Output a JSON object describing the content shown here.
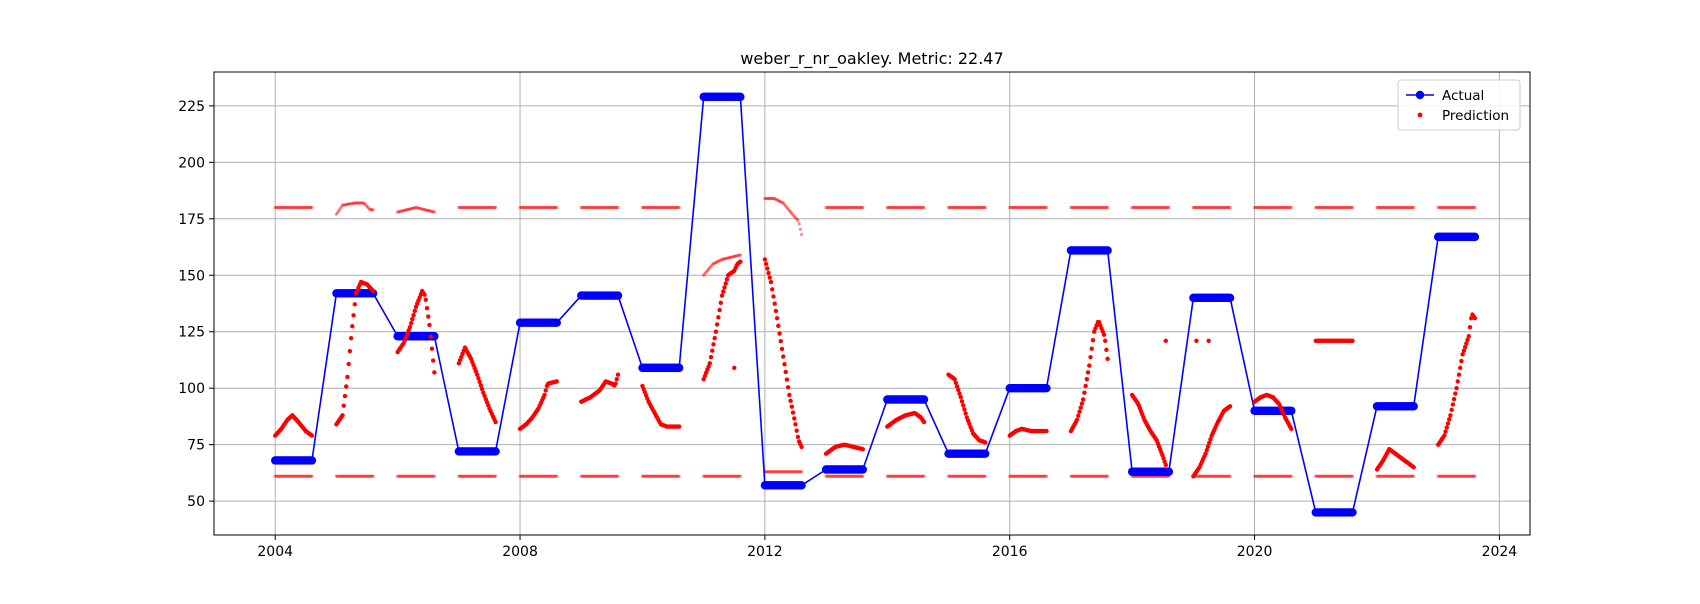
{
  "chart_data": {
    "type": "line",
    "title": "weber_r_nr_oakley. Metric: 22.47",
    "xlabel": "",
    "ylabel": "",
    "xlim": [
      2003.0,
      2024.5
    ],
    "ylim": [
      35,
      240
    ],
    "x_ticks": [
      2004,
      2008,
      2012,
      2016,
      2020,
      2024
    ],
    "y_ticks": [
      50,
      75,
      100,
      125,
      150,
      175,
      200,
      225
    ],
    "grid": true,
    "legend_position": "upper right",
    "legend": [
      "Actual",
      "Prediction"
    ],
    "colors": {
      "actual": "#0000ff",
      "prediction": "#ff0000"
    },
    "actual_segments": [
      {
        "x0": 2004.0,
        "x1": 2004.6,
        "y": 68
      },
      {
        "x0": 2005.0,
        "x1": 2005.6,
        "y": 142
      },
      {
        "x0": 2006.0,
        "x1": 2006.6,
        "y": 123
      },
      {
        "x0": 2007.0,
        "x1": 2007.6,
        "y": 72
      },
      {
        "x0": 2008.0,
        "x1": 2008.6,
        "y": 129
      },
      {
        "x0": 2009.0,
        "x1": 2009.6,
        "y": 141
      },
      {
        "x0": 2010.0,
        "x1": 2010.6,
        "y": 109
      },
      {
        "x0": 2011.0,
        "x1": 2011.6,
        "y": 229
      },
      {
        "x0": 2012.0,
        "x1": 2012.6,
        "y": 57
      },
      {
        "x0": 2013.0,
        "x1": 2013.6,
        "y": 64
      },
      {
        "x0": 2014.0,
        "x1": 2014.6,
        "y": 95
      },
      {
        "x0": 2015.0,
        "x1": 2015.6,
        "y": 71
      },
      {
        "x0": 2016.0,
        "x1": 2016.6,
        "y": 100
      },
      {
        "x0": 2017.0,
        "x1": 2017.6,
        "y": 161
      },
      {
        "x0": 2018.0,
        "x1": 2018.6,
        "y": 63
      },
      {
        "x0": 2019.0,
        "x1": 2019.6,
        "y": 140
      },
      {
        "x0": 2020.0,
        "x1": 2020.6,
        "y": 90
      },
      {
        "x0": 2021.0,
        "x1": 2021.6,
        "y": 45
      },
      {
        "x0": 2022.0,
        "x1": 2022.6,
        "y": 92
      },
      {
        "x0": 2023.0,
        "x1": 2023.6,
        "y": 167
      }
    ],
    "prediction_curves": [
      {
        "points": [
          [
            2004.0,
            79
          ],
          [
            2004.1,
            82
          ],
          [
            2004.2,
            86
          ],
          [
            2004.28,
            88
          ],
          [
            2004.38,
            85
          ],
          [
            2004.5,
            81
          ],
          [
            2004.6,
            79
          ]
        ]
      },
      {
        "points": [
          [
            2005.0,
            84
          ],
          [
            2005.1,
            88
          ],
          [
            2005.18,
            105
          ],
          [
            2005.25,
            125
          ],
          [
            2005.32,
            142
          ],
          [
            2005.4,
            147
          ],
          [
            2005.5,
            146
          ],
          [
            2005.6,
            143
          ]
        ]
      },
      {
        "points": [
          [
            2006.0,
            116
          ],
          [
            2006.1,
            120
          ],
          [
            2006.2,
            127
          ],
          [
            2006.3,
            136
          ],
          [
            2006.4,
            143
          ],
          [
            2006.45,
            141
          ],
          [
            2006.52,
            128
          ],
          [
            2006.6,
            107
          ]
        ]
      },
      {
        "points": [
          [
            2007.0,
            111
          ],
          [
            2007.1,
            118
          ],
          [
            2007.2,
            113
          ],
          [
            2007.3,
            106
          ],
          [
            2007.4,
            98
          ],
          [
            2007.5,
            91
          ],
          [
            2007.6,
            85
          ]
        ]
      },
      {
        "points": [
          [
            2008.0,
            82
          ],
          [
            2008.1,
            84
          ],
          [
            2008.2,
            87
          ],
          [
            2008.3,
            91
          ],
          [
            2008.4,
            97
          ],
          [
            2008.45,
            102
          ],
          [
            2008.6,
            103
          ]
        ]
      },
      {
        "points": [
          [
            2009.0,
            94
          ],
          [
            2009.15,
            96
          ],
          [
            2009.3,
            99
          ],
          [
            2009.4,
            103
          ],
          [
            2009.5,
            102
          ],
          [
            2009.55,
            101
          ],
          [
            2009.6,
            106
          ]
        ]
      },
      {
        "points": [
          [
            2010.0,
            101
          ],
          [
            2010.1,
            94
          ],
          [
            2010.2,
            89
          ],
          [
            2010.3,
            84
          ],
          [
            2010.4,
            83
          ],
          [
            2010.5,
            83
          ],
          [
            2010.6,
            83
          ]
        ]
      },
      {
        "points": [
          [
            2011.0,
            104
          ],
          [
            2011.1,
            111
          ],
          [
            2011.2,
            125
          ],
          [
            2011.3,
            141
          ],
          [
            2011.4,
            150
          ],
          [
            2011.5,
            152
          ],
          [
            2011.55,
            155
          ],
          [
            2011.6,
            156
          ]
        ]
      },
      {
        "points": [
          [
            2012.0,
            157
          ],
          [
            2012.1,
            147
          ],
          [
            2012.2,
            131
          ],
          [
            2012.3,
            114
          ],
          [
            2012.4,
            97
          ],
          [
            2012.5,
            84
          ],
          [
            2012.55,
            77
          ],
          [
            2012.6,
            74
          ]
        ]
      },
      {
        "points": [
          [
            2013.0,
            71
          ],
          [
            2013.15,
            74
          ],
          [
            2013.3,
            75
          ],
          [
            2013.45,
            74
          ],
          [
            2013.6,
            73
          ]
        ]
      },
      {
        "points": [
          [
            2014.0,
            83
          ],
          [
            2014.15,
            86
          ],
          [
            2014.3,
            88
          ],
          [
            2014.45,
            89
          ],
          [
            2014.55,
            87
          ],
          [
            2014.6,
            85
          ]
        ]
      },
      {
        "points": [
          [
            2015.0,
            106
          ],
          [
            2015.1,
            104
          ],
          [
            2015.2,
            96
          ],
          [
            2015.3,
            87
          ],
          [
            2015.4,
            80
          ],
          [
            2015.5,
            77
          ],
          [
            2015.6,
            76
          ]
        ]
      },
      {
        "points": [
          [
            2016.0,
            79
          ],
          [
            2016.1,
            81
          ],
          [
            2016.2,
            82
          ],
          [
            2016.35,
            81
          ],
          [
            2016.5,
            81
          ],
          [
            2016.6,
            81
          ]
        ]
      },
      {
        "points": [
          [
            2017.0,
            81
          ],
          [
            2017.1,
            86
          ],
          [
            2017.2,
            95
          ],
          [
            2017.3,
            110
          ],
          [
            2017.38,
            125
          ],
          [
            2017.45,
            130
          ],
          [
            2017.55,
            123
          ],
          [
            2017.6,
            113
          ]
        ]
      },
      {
        "points": [
          [
            2018.0,
            97
          ],
          [
            2018.1,
            93
          ],
          [
            2018.2,
            86
          ],
          [
            2018.3,
            81
          ],
          [
            2018.4,
            77
          ],
          [
            2018.5,
            70
          ],
          [
            2018.55,
            66
          ]
        ]
      },
      {
        "points": [
          [
            2019.0,
            61
          ],
          [
            2019.1,
            65
          ],
          [
            2019.2,
            71
          ],
          [
            2019.3,
            79
          ],
          [
            2019.4,
            85
          ],
          [
            2019.5,
            90
          ],
          [
            2019.6,
            92
          ]
        ]
      },
      {
        "points": [
          [
            2020.0,
            94
          ],
          [
            2020.1,
            96
          ],
          [
            2020.2,
            97
          ],
          [
            2020.3,
            96
          ],
          [
            2020.4,
            93
          ],
          [
            2020.5,
            87
          ],
          [
            2020.6,
            82
          ]
        ]
      },
      {
        "points": [
          [
            2021.0,
            121
          ],
          [
            2021.15,
            121
          ],
          [
            2021.3,
            121
          ],
          [
            2021.45,
            121
          ],
          [
            2021.6,
            121
          ]
        ]
      },
      {
        "points": [
          [
            2022.0,
            64
          ],
          [
            2022.1,
            68
          ],
          [
            2022.2,
            73
          ],
          [
            2022.3,
            71
          ],
          [
            2022.4,
            69
          ],
          [
            2022.5,
            67
          ],
          [
            2022.6,
            65
          ]
        ]
      },
      {
        "points": [
          [
            2023.0,
            75
          ],
          [
            2023.1,
            79
          ],
          [
            2023.2,
            88
          ],
          [
            2023.3,
            100
          ],
          [
            2023.4,
            115
          ],
          [
            2023.5,
            123
          ],
          [
            2023.55,
            133
          ],
          [
            2023.6,
            131
          ]
        ]
      }
    ],
    "prediction_isolated": [
      [
        2011.5,
        109
      ],
      [
        2018.55,
        121
      ],
      [
        2019.05,
        121
      ],
      [
        2019.25,
        121
      ]
    ],
    "band_upper_flat": 180,
    "band_lower_flat": 61,
    "band_upper_curves": [
      {
        "x0": 2005.0,
        "x1": 2005.6,
        "points": [
          [
            2005.0,
            177
          ],
          [
            2005.1,
            181
          ],
          [
            2005.3,
            182
          ],
          [
            2005.45,
            182
          ],
          [
            2005.55,
            179
          ],
          [
            2005.6,
            179
          ]
        ]
      },
      {
        "x0": 2006.0,
        "x1": 2006.6,
        "points": [
          [
            2006.0,
            178
          ],
          [
            2006.15,
            179
          ],
          [
            2006.3,
            180
          ],
          [
            2006.45,
            179
          ],
          [
            2006.6,
            178
          ]
        ]
      },
      {
        "x0": 2011.0,
        "x1": 2011.6,
        "points": [
          [
            2011.0,
            150
          ],
          [
            2011.15,
            155
          ],
          [
            2011.3,
            157
          ],
          [
            2011.45,
            158
          ],
          [
            2011.6,
            159
          ]
        ]
      },
      {
        "x0": 2012.0,
        "x1": 2012.6,
        "points": [
          [
            2012.0,
            184
          ],
          [
            2012.15,
            184
          ],
          [
            2012.3,
            182
          ],
          [
            2012.45,
            177
          ],
          [
            2012.55,
            174
          ],
          [
            2012.6,
            168
          ]
        ]
      }
    ],
    "band_lower_overrides": [
      {
        "x0": 2012.0,
        "x1": 2012.6,
        "y": 63
      }
    ]
  }
}
